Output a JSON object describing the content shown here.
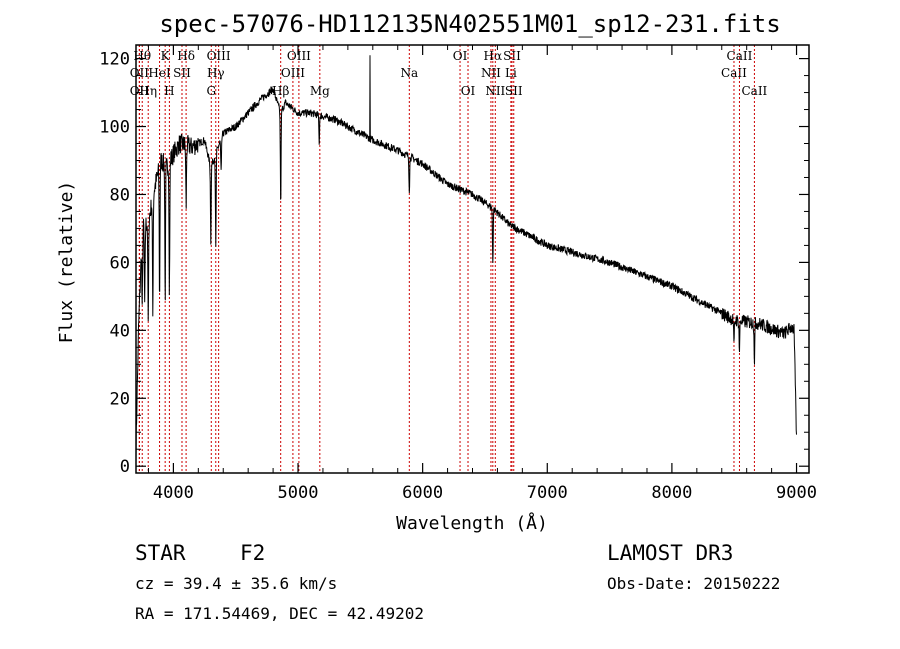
{
  "chart_data": {
    "type": "line",
    "title": "spec-57076-HD112135N402551M01_sp12-231.fits",
    "xlabel": "Wavelength (Å)",
    "ylabel": "Flux (relative)",
    "xlim": [
      3700,
      9100
    ],
    "ylim": [
      -2,
      124
    ],
    "xticks": [
      4000,
      5000,
      6000,
      7000,
      8000,
      9000
    ],
    "yticks": [
      0,
      20,
      40,
      60,
      80,
      100,
      120
    ],
    "series": [
      {
        "name": "spectrum",
        "anchors": [
          [
            3700,
            5
          ],
          [
            3720,
            40
          ],
          [
            3750,
            70
          ],
          [
            3800,
            72
          ],
          [
            3850,
            82
          ],
          [
            3900,
            90
          ],
          [
            3950,
            88
          ],
          [
            4000,
            92
          ],
          [
            4050,
            95
          ],
          [
            4150,
            94
          ],
          [
            4250,
            96
          ],
          [
            4300,
            88
          ],
          [
            4400,
            98
          ],
          [
            4500,
            100
          ],
          [
            4600,
            104
          ],
          [
            4700,
            108
          ],
          [
            4800,
            111
          ],
          [
            4860,
            104
          ],
          [
            4900,
            107
          ],
          [
            5000,
            104
          ],
          [
            5100,
            104
          ],
          [
            5200,
            103
          ],
          [
            5300,
            102
          ],
          [
            5400,
            100
          ],
          [
            5600,
            96
          ],
          [
            5800,
            93
          ],
          [
            6000,
            89
          ],
          [
            6200,
            83
          ],
          [
            6400,
            80
          ],
          [
            6563,
            76
          ],
          [
            6700,
            71
          ],
          [
            7000,
            65
          ],
          [
            7500,
            60
          ],
          [
            8000,
            53
          ],
          [
            8500,
            43
          ],
          [
            8700,
            42
          ],
          [
            8900,
            39
          ],
          [
            8960,
            41
          ],
          [
            8980,
            40
          ],
          [
            9000,
            8
          ]
        ],
        "absorption": [
          [
            3750,
            -25
          ],
          [
            3770,
            -25
          ],
          [
            3798,
            -30
          ],
          [
            3835,
            -35
          ],
          [
            3889,
            -40
          ],
          [
            3934,
            -40
          ],
          [
            3968,
            -38
          ],
          [
            4102,
            -18
          ],
          [
            4300,
            -22
          ],
          [
            4340,
            -28
          ],
          [
            4383,
            -10
          ],
          [
            4861,
            -28
          ],
          [
            5170,
            -8
          ],
          [
            5893,
            -10
          ],
          [
            6563,
            -16
          ],
          [
            8498,
            -8
          ],
          [
            8542,
            -9
          ],
          [
            8662,
            -11
          ]
        ],
        "spike": [
          5578,
          121
        ]
      }
    ],
    "spectral_lines": [
      {
        "wave": 3750,
        "label": "Hθ",
        "row": 0
      },
      {
        "wave": 3727,
        "label": "OII",
        "row": 1
      },
      {
        "wave": 3727,
        "label": "OII",
        "row": 2
      },
      {
        "wave": 3798,
        "label": "Hη",
        "row": 2
      },
      {
        "wave": 3889,
        "label": "HeI",
        "row": 1
      },
      {
        "wave": 3934,
        "label": "K",
        "row": 0
      },
      {
        "wave": 3968,
        "label": "H",
        "row": 2
      },
      {
        "wave": 4069,
        "label": "SII",
        "row": 1
      },
      {
        "wave": 4102,
        "label": "Hδ",
        "row": 0
      },
      {
        "wave": 4304,
        "label": "G",
        "row": 2
      },
      {
        "wave": 4340,
        "label": "Hγ",
        "row": 1
      },
      {
        "wave": 4363,
        "label": "OIII",
        "row": 0
      },
      {
        "wave": 4861,
        "label": "Hβ",
        "row": 2
      },
      {
        "wave": 4959,
        "label": "OIII",
        "row": 1
      },
      {
        "wave": 5007,
        "label": "OIII",
        "row": 0
      },
      {
        "wave": 5175,
        "label": "Mg",
        "row": 2
      },
      {
        "wave": 5893,
        "label": "Na",
        "row": 1
      },
      {
        "wave": 6300,
        "label": "OI",
        "row": 0
      },
      {
        "wave": 6364,
        "label": "OI",
        "row": 2
      },
      {
        "wave": 6548,
        "label": "NII",
        "row": 1
      },
      {
        "wave": 6563,
        "label": "Hα",
        "row": 0
      },
      {
        "wave": 6583,
        "label": "NII",
        "row": 2
      },
      {
        "wave": 6708,
        "label": "Li",
        "row": 1
      },
      {
        "wave": 6717,
        "label": "SII",
        "row": 0
      },
      {
        "wave": 6731,
        "label": "SII",
        "row": 2
      },
      {
        "wave": 8498,
        "label": "CaII",
        "row": 1
      },
      {
        "wave": 8542,
        "label": "CaII",
        "row": 0
      },
      {
        "wave": 8662,
        "label": "CaII",
        "row": 2
      }
    ]
  },
  "info": {
    "class": "STAR",
    "subclass": "F2",
    "survey": "LAMOST DR3",
    "cz": "cz = 39.4 ± 35.6 km/s",
    "obs_date": "Obs-Date: 20150222",
    "coords": "RA = 171.54469, DEC =  42.49202"
  }
}
